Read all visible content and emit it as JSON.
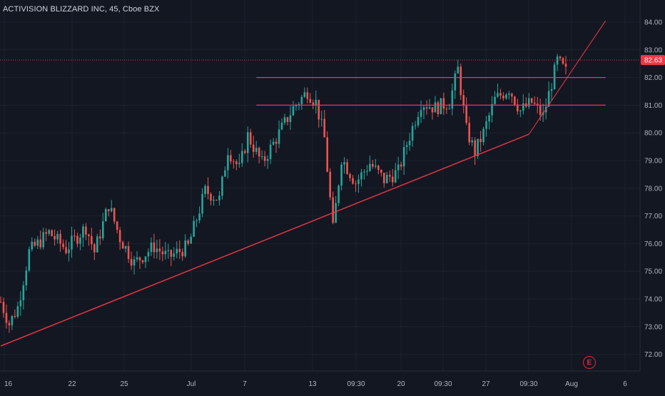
{
  "header": {
    "symbol_title": "ACTIVISION BLIZZARD INC, 45, Cboe BZX"
  },
  "colors": {
    "background": "#131722",
    "up": "#26a69a",
    "down": "#ef5350",
    "drawing": "#f23645",
    "grid": "#1e222d"
  },
  "last_price_label": "82.63",
  "earnings_marker": {
    "label": "E",
    "icon": "earnings-icon"
  },
  "chart_data": {
    "type": "candlestick",
    "title": "ACTIVISION BLIZZARD INC, 45, Cboe BZX",
    "ylim": [
      71.5,
      84.3
    ],
    "y_ticks": [
      "84.00",
      "83.00",
      "82.00",
      "81.00",
      "80.00",
      "79.00",
      "78.00",
      "77.00",
      "76.00",
      "75.00",
      "74.00",
      "73.00",
      "72.00"
    ],
    "x_ticks": [
      "16",
      "22",
      "25",
      "Jul",
      "7",
      "13",
      "09:30",
      "20",
      "09:30",
      "27",
      "09:30",
      "Aug",
      "6"
    ],
    "last_price": 82.63,
    "anchors": [
      {
        "t": 0,
        "v": 73.9
      },
      {
        "t": 3,
        "v": 73.1
      },
      {
        "t": 6,
        "v": 73.7
      },
      {
        "t": 10,
        "v": 75.7
      },
      {
        "t": 17,
        "v": 76.4
      },
      {
        "t": 23,
        "v": 75.8
      },
      {
        "t": 30,
        "v": 76.6
      },
      {
        "t": 33,
        "v": 75.7
      },
      {
        "t": 38,
        "v": 77.4
      },
      {
        "t": 42,
        "v": 76.2
      },
      {
        "t": 47,
        "v": 75.3
      },
      {
        "t": 54,
        "v": 75.9
      },
      {
        "t": 59,
        "v": 75.5
      },
      {
        "t": 66,
        "v": 75.9
      },
      {
        "t": 72,
        "v": 77.9
      },
      {
        "t": 77,
        "v": 77.6
      },
      {
        "t": 80,
        "v": 79.4
      },
      {
        "t": 84,
        "v": 78.7
      },
      {
        "t": 87,
        "v": 79.9
      },
      {
        "t": 92,
        "v": 78.9
      },
      {
        "t": 97,
        "v": 79.8
      },
      {
        "t": 103,
        "v": 80.9
      },
      {
        "t": 108,
        "v": 81.5
      },
      {
        "t": 111,
        "v": 81.1
      },
      {
        "t": 114,
        "v": 79.8
      },
      {
        "t": 117,
        "v": 76.5
      },
      {
        "t": 120,
        "v": 79.1
      },
      {
        "t": 125,
        "v": 78.2
      },
      {
        "t": 130,
        "v": 78.9
      },
      {
        "t": 135,
        "v": 78.3
      },
      {
        "t": 140,
        "v": 78.6
      },
      {
        "t": 143,
        "v": 79.6
      },
      {
        "t": 148,
        "v": 81.1
      },
      {
        "t": 153,
        "v": 80.9
      },
      {
        "t": 158,
        "v": 81.1
      },
      {
        "t": 161,
        "v": 82.3
      },
      {
        "t": 164,
        "v": 80.1
      },
      {
        "t": 167,
        "v": 79.3
      },
      {
        "t": 170,
        "v": 80.0
      },
      {
        "t": 174,
        "v": 81.2
      },
      {
        "t": 179,
        "v": 81.6
      },
      {
        "t": 183,
        "v": 80.8
      },
      {
        "t": 187,
        "v": 81.1
      },
      {
        "t": 191,
        "v": 80.6
      },
      {
        "t": 193,
        "v": 81.4
      },
      {
        "t": 196,
        "v": 82.6
      },
      {
        "t": 199,
        "v": 82.2
      }
    ],
    "drawings": [
      {
        "name": "support-trendline",
        "type": "trendline",
        "from": {
          "t": 0,
          "v": 72.3
        },
        "to": {
          "t": 186,
          "v": 79.95
        }
      },
      {
        "name": "channel-upper-line",
        "type": "trendline",
        "from": {
          "t": 186,
          "v": 79.95
        },
        "to": {
          "t": 213,
          "v": 84.05
        }
      },
      {
        "name": "resistance-line-82",
        "type": "horizontal-segment",
        "from_t": 90,
        "to_t": 213,
        "v": 82.0
      },
      {
        "name": "resistance-line-81",
        "type": "horizontal-segment",
        "from_t": 90,
        "to_t": 213,
        "v": 81.0
      }
    ]
  }
}
